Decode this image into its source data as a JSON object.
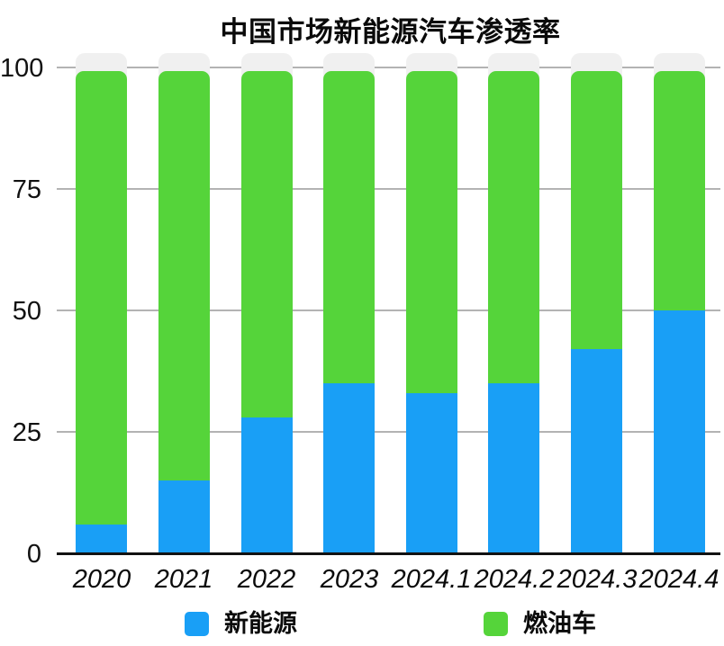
{
  "chart_data": {
    "type": "bar",
    "stacked": true,
    "title": "中国市场新能源汽车渗透率",
    "categories": [
      "2020",
      "2021",
      "2022",
      "2023",
      "2024.1",
      "2024.2",
      "2024.3",
      "2024.4"
    ],
    "series": [
      {
        "name": "新能源",
        "color": "#199FF6",
        "values": [
          6,
          15,
          28,
          35,
          33,
          35,
          42,
          50
        ]
      },
      {
        "name": "燃油车",
        "color": "#55D43A",
        "values": [
          94,
          85,
          72,
          65,
          67,
          65,
          58,
          50
        ]
      }
    ],
    "xlabel": "",
    "ylabel": "",
    "ylim": [
      0,
      100
    ],
    "yticks": [
      0,
      25,
      50,
      75,
      100
    ],
    "grid": true,
    "legend_position": "bottom",
    "gridline_color": "#b3b3b3",
    "axis_color": "#121212",
    "bar_track_color": "#f0f0f0"
  }
}
